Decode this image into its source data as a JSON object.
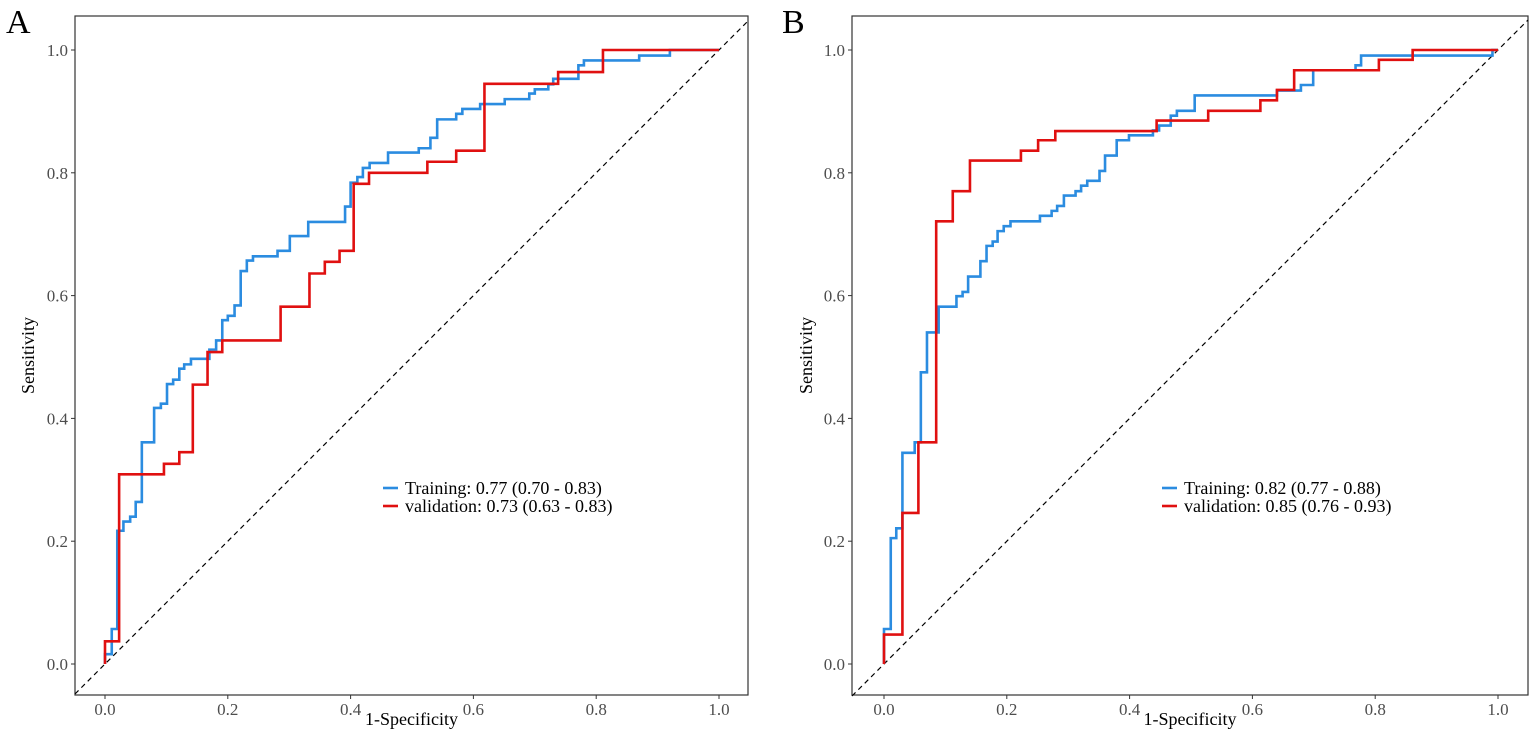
{
  "chart_data": [
    {
      "type": "line",
      "panel_label": "A",
      "xlabel": "1-Specificity",
      "ylabel": "Sensitivity",
      "xlim": [
        0,
        1
      ],
      "ylim": [
        0,
        1
      ],
      "xticks": [
        "0.0",
        "0.2",
        "0.4",
        "0.6",
        "0.8",
        "1.0"
      ],
      "yticks": [
        "0.0",
        "0.2",
        "0.4",
        "0.6",
        "0.8",
        "1.0"
      ],
      "grid": false,
      "reference_line": "diagonal dashed",
      "legend_position": "center-right",
      "series": [
        {
          "name": "Training: 0.77 (0.70 - 0.83)",
          "color": "#2b8ce0",
          "steps": [
            [
              0,
              0.016
            ],
            [
              0.011,
              0.057
            ],
            [
              0.02,
              0.217
            ],
            [
              0.03,
              0.232
            ],
            [
              0.041,
              0.24
            ],
            [
              0.05,
              0.264
            ],
            [
              0.06,
              0.361
            ],
            [
              0.08,
              0.417
            ],
            [
              0.091,
              0.424
            ],
            [
              0.101,
              0.456
            ],
            [
              0.111,
              0.463
            ],
            [
              0.121,
              0.481
            ],
            [
              0.129,
              0.488
            ],
            [
              0.14,
              0.497
            ],
            [
              0.17,
              0.512
            ],
            [
              0.181,
              0.527
            ],
            [
              0.191,
              0.56
            ],
            [
              0.2,
              0.567
            ],
            [
              0.211,
              0.584
            ],
            [
              0.221,
              0.64
            ],
            [
              0.231,
              0.657
            ],
            [
              0.241,
              0.664
            ],
            [
              0.281,
              0.673
            ],
            [
              0.301,
              0.697
            ],
            [
              0.331,
              0.72
            ],
            [
              0.391,
              0.745
            ],
            [
              0.4,
              0.784
            ],
            [
              0.411,
              0.793
            ],
            [
              0.42,
              0.808
            ],
            [
              0.431,
              0.816
            ],
            [
              0.461,
              0.833
            ],
            [
              0.511,
              0.84
            ],
            [
              0.53,
              0.857
            ],
            [
              0.541,
              0.887
            ],
            [
              0.572,
              0.896
            ],
            [
              0.582,
              0.904
            ],
            [
              0.611,
              0.912
            ],
            [
              0.651,
              0.92
            ],
            [
              0.691,
              0.929
            ],
            [
              0.7,
              0.936
            ],
            [
              0.722,
              0.944
            ],
            [
              0.73,
              0.953
            ],
            [
              0.771,
              0.975
            ],
            [
              0.78,
              0.983
            ],
            [
              0.87,
              0.991
            ],
            [
              0.92,
              1.0
            ],
            [
              1.0,
              1.0
            ]
          ]
        },
        {
          "name": "validation: 0.73 (0.63 - 0.83)",
          "color": "#e01010",
          "steps": [
            [
              0,
              0.037
            ],
            [
              0.023,
              0.309
            ],
            [
              0.096,
              0.326
            ],
            [
              0.121,
              0.345
            ],
            [
              0.143,
              0.455
            ],
            [
              0.167,
              0.508
            ],
            [
              0.191,
              0.527
            ],
            [
              0.286,
              0.582
            ],
            [
              0.333,
              0.636
            ],
            [
              0.358,
              0.655
            ],
            [
              0.382,
              0.673
            ],
            [
              0.405,
              0.782
            ],
            [
              0.43,
              0.8
            ],
            [
              0.525,
              0.818
            ],
            [
              0.572,
              0.836
            ],
            [
              0.618,
              0.945
            ],
            [
              0.738,
              0.964
            ],
            [
              0.811,
              1.0
            ],
            [
              1.0,
              1.0
            ]
          ]
        }
      ]
    },
    {
      "type": "line",
      "panel_label": "B",
      "xlabel": "1-Specificity",
      "ylabel": "Sensitivity",
      "xlim": [
        0,
        1
      ],
      "ylim": [
        0,
        1
      ],
      "xticks": [
        "0.0",
        "0.2",
        "0.4",
        "0.6",
        "0.8",
        "1.0"
      ],
      "yticks": [
        "0.0",
        "0.2",
        "0.4",
        "0.6",
        "0.8",
        "1.0"
      ],
      "grid": false,
      "reference_line": "diagonal dashed",
      "legend_position": "center-right",
      "series": [
        {
          "name": "Training: 0.82 (0.77 - 0.88)",
          "color": "#2b8ce0",
          "steps": [
            [
              0,
              0.057
            ],
            [
              0.011,
              0.205
            ],
            [
              0.02,
              0.221
            ],
            [
              0.03,
              0.344
            ],
            [
              0.05,
              0.361
            ],
            [
              0.06,
              0.475
            ],
            [
              0.07,
              0.54
            ],
            [
              0.089,
              0.582
            ],
            [
              0.118,
              0.599
            ],
            [
              0.128,
              0.606
            ],
            [
              0.137,
              0.631
            ],
            [
              0.157,
              0.656
            ],
            [
              0.167,
              0.681
            ],
            [
              0.177,
              0.688
            ],
            [
              0.185,
              0.705
            ],
            [
              0.195,
              0.713
            ],
            [
              0.206,
              0.721
            ],
            [
              0.254,
              0.73
            ],
            [
              0.273,
              0.738
            ],
            [
              0.282,
              0.746
            ],
            [
              0.293,
              0.763
            ],
            [
              0.312,
              0.77
            ],
            [
              0.321,
              0.779
            ],
            [
              0.331,
              0.787
            ],
            [
              0.351,
              0.803
            ],
            [
              0.36,
              0.828
            ],
            [
              0.379,
              0.853
            ],
            [
              0.399,
              0.861
            ],
            [
              0.438,
              0.869
            ],
            [
              0.448,
              0.877
            ],
            [
              0.467,
              0.893
            ],
            [
              0.477,
              0.901
            ],
            [
              0.506,
              0.926
            ],
            [
              0.64,
              0.934
            ],
            [
              0.679,
              0.943
            ],
            [
              0.699,
              0.967
            ],
            [
              0.768,
              0.975
            ],
            [
              0.777,
              0.991
            ],
            [
              0.991,
              1.0
            ],
            [
              1.0,
              1.0
            ]
          ]
        },
        {
          "name": "validation: 0.85 (0.76 - 0.93)",
          "color": "#e01010",
          "steps": [
            [
              0,
              0.048
            ],
            [
              0.03,
              0.246
            ],
            [
              0.056,
              0.361
            ],
            [
              0.085,
              0.721
            ],
            [
              0.112,
              0.77
            ],
            [
              0.14,
              0.82
            ],
            [
              0.223,
              0.836
            ],
            [
              0.251,
              0.853
            ],
            [
              0.279,
              0.868
            ],
            [
              0.444,
              0.885
            ],
            [
              0.528,
              0.901
            ],
            [
              0.613,
              0.918
            ],
            [
              0.64,
              0.935
            ],
            [
              0.668,
              0.967
            ],
            [
              0.806,
              0.984
            ],
            [
              0.861,
              1.0
            ],
            [
              1.0,
              1.0
            ]
          ]
        }
      ]
    }
  ]
}
